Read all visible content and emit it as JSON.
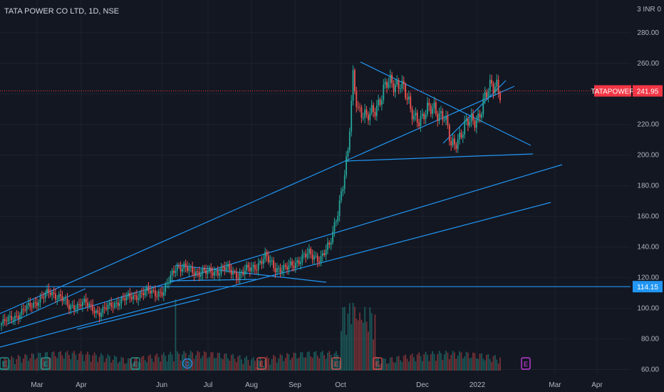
{
  "header": {
    "title": "TATA POWER CO LTD, 1D, NSE"
  },
  "scale_label": "3 INR 0",
  "colors": {
    "background": "#131722",
    "up": "#26a69a",
    "down": "#ef5350",
    "trendline": "#2196f3",
    "price_tag": "#f23645",
    "level_tag": "#2196f3"
  },
  "chart_data": {
    "type": "candlestick",
    "symbol": "TATAPOWER",
    "last_price": "241.95",
    "horizontal_level": "114.15",
    "y_ticks": [
      "280.00",
      "260.00",
      "240.00",
      "220.00",
      "200.00",
      "180.00",
      "160.00",
      "140.00",
      "120.00",
      "100.00",
      "80.00",
      "60.00"
    ],
    "y_tick_values": [
      280,
      260,
      240,
      220,
      200,
      180,
      160,
      140,
      120,
      100,
      80,
      60
    ],
    "x_ticks": [
      "Mar",
      "Apr",
      "Jun",
      "Jul",
      "Aug",
      "Sep",
      "Oct",
      "Dec",
      "2022",
      "Mar",
      "Apr"
    ],
    "ylim": [
      57,
      292
    ],
    "event_markers": [
      {
        "label": "E",
        "color": "#26a69a"
      },
      {
        "label": "E",
        "color": "#26a69a"
      },
      {
        "label": "E",
        "color": "#26a69a"
      },
      {
        "label": "D",
        "color": "#2196f3"
      },
      {
        "label": "E",
        "color": "#ef5350"
      },
      {
        "label": "E",
        "color": "#ef5350"
      },
      {
        "label": "E",
        "color": "#ef5350"
      },
      {
        "label": "E",
        "color": "#e040fb"
      }
    ],
    "price_anchors": [
      [
        0,
        90
      ],
      [
        10,
        96
      ],
      [
        20,
        104
      ],
      [
        28,
        110
      ],
      [
        35,
        108
      ],
      [
        40,
        100
      ],
      [
        48,
        104
      ],
      [
        58,
        97
      ],
      [
        68,
        104
      ],
      [
        78,
        108
      ],
      [
        88,
        111
      ],
      [
        96,
        110
      ],
      [
        103,
        128
      ],
      [
        110,
        125
      ],
      [
        122,
        123
      ],
      [
        132,
        126
      ],
      [
        140,
        122
      ],
      [
        148,
        126
      ],
      [
        156,
        133
      ],
      [
        162,
        127
      ],
      [
        168,
        125
      ],
      [
        176,
        132
      ],
      [
        182,
        135
      ],
      [
        189,
        133
      ],
      [
        194,
        140
      ],
      [
        198,
        160
      ],
      [
        202,
        180
      ],
      [
        205,
        200
      ],
      [
        208,
        252
      ],
      [
        211,
        232
      ],
      [
        216,
        222
      ],
      [
        220,
        230
      ],
      [
        228,
        245
      ],
      [
        236,
        249
      ],
      [
        242,
        228
      ],
      [
        249,
        224
      ],
      [
        256,
        232
      ],
      [
        262,
        224
      ],
      [
        266,
        206
      ],
      [
        270,
        212
      ],
      [
        276,
        220
      ],
      [
        282,
        226
      ],
      [
        286,
        236
      ],
      [
        290,
        245
      ],
      [
        293,
        248
      ],
      [
        295,
        242
      ]
    ]
  }
}
